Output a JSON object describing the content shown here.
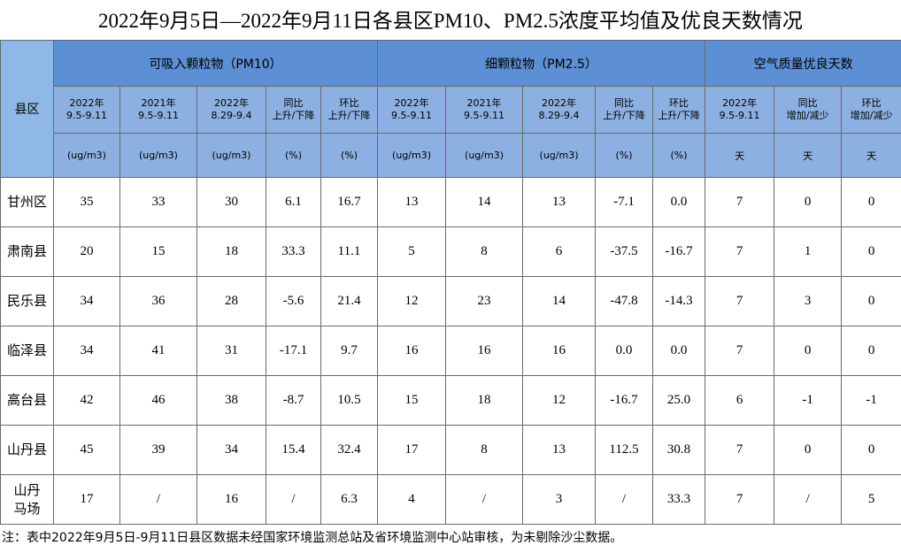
{
  "title": "2022年9月5日—2022年9月11日各县区PM10、PM2.5浓度平均值及优良天数情况",
  "table": {
    "corner": "县区",
    "groups": [
      "可吸入颗粒物（PM10）",
      "细颗粒物（PM2.5）",
      "空气质量优良天数"
    ],
    "subheaders": [
      [
        "2022年",
        "9.5-9.11"
      ],
      [
        "2021年",
        "9.5-9.11"
      ],
      [
        "2022年",
        "8.29-9.4"
      ],
      [
        "同比",
        "上升/下降"
      ],
      [
        "环比",
        "上升/下降"
      ],
      [
        "2022年",
        "9.5-9.11"
      ],
      [
        "2021年",
        "9.5-9.11"
      ],
      [
        "2022年",
        "8.29-9.4"
      ],
      [
        "同比",
        "上升/下降"
      ],
      [
        "环比",
        "上升/下降"
      ],
      [
        "2022年",
        "9.5-9.11"
      ],
      [
        "同比",
        "增加/减少"
      ],
      [
        "环比",
        "增加/减少"
      ]
    ],
    "units": [
      "(ug/m3)",
      "(ug/m3)",
      "(ug/m3)",
      "(%)",
      "(%)",
      "(ug/m3)",
      "(ug/m3)",
      "(ug/m3)",
      "(%)",
      "(%)",
      "天",
      "天",
      "天"
    ],
    "rows": [
      {
        "county": [
          "甘州区"
        ],
        "values": [
          "35",
          "33",
          "30",
          "6.1",
          "16.7",
          "13",
          "14",
          "13",
          "-7.1",
          "0.0",
          "7",
          "0",
          "0"
        ]
      },
      {
        "county": [
          "肃南县"
        ],
        "values": [
          "20",
          "15",
          "18",
          "33.3",
          "11.1",
          "5",
          "8",
          "6",
          "-37.5",
          "-16.7",
          "7",
          "1",
          "0"
        ]
      },
      {
        "county": [
          "民乐县"
        ],
        "values": [
          "34",
          "36",
          "28",
          "-5.6",
          "21.4",
          "12",
          "23",
          "14",
          "-47.8",
          "-14.3",
          "7",
          "3",
          "0"
        ]
      },
      {
        "county": [
          "临泽县"
        ],
        "values": [
          "34",
          "41",
          "31",
          "-17.1",
          "9.7",
          "16",
          "16",
          "16",
          "0.0",
          "0.0",
          "7",
          "0",
          "0"
        ]
      },
      {
        "county": [
          "高台县"
        ],
        "values": [
          "42",
          "46",
          "38",
          "-8.7",
          "10.5",
          "15",
          "18",
          "12",
          "-16.7",
          "25.0",
          "6",
          "-1",
          "-1"
        ]
      },
      {
        "county": [
          "山丹县"
        ],
        "values": [
          "45",
          "39",
          "34",
          "15.4",
          "32.4",
          "17",
          "8",
          "13",
          "112.5",
          "30.8",
          "7",
          "0",
          "0"
        ]
      },
      {
        "county": [
          "山丹",
          "马场"
        ],
        "values": [
          "17",
          "/",
          "16",
          "/",
          "6.3",
          "4",
          "/",
          "3",
          "/",
          "33.3",
          "7",
          "/",
          "5"
        ]
      }
    ]
  },
  "note": "注：表中2022年9月5日-9月11日县区数据未经国家环境监测总站及省环境监测中心站审核，为未剔除沙尘数据。"
}
